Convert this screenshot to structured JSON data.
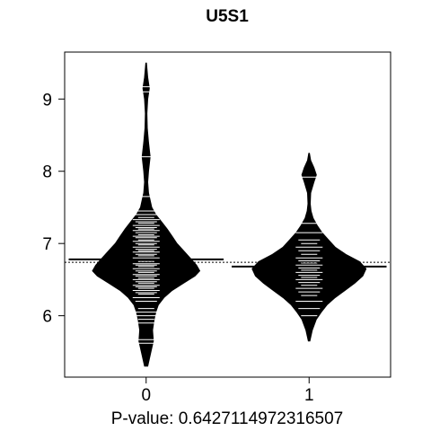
{
  "chart_data": {
    "type": "beanplot",
    "title": "U5S1",
    "xlabel": "P-value: 0.6427114972316507",
    "ylabel": "",
    "categories": [
      "0",
      "1"
    ],
    "yticks": [
      6,
      7,
      8,
      9
    ],
    "ylim": [
      5.15,
      9.65
    ],
    "xlim": [
      0.5,
      2.5
    ],
    "overall_mean": 6.74,
    "grid": false,
    "series": [
      {
        "category": "0",
        "mean": 6.78,
        "min": 5.3,
        "max": 9.5,
        "density": [
          [
            5.3,
            0.02
          ],
          [
            5.5,
            0.06
          ],
          [
            5.65,
            0.09
          ],
          [
            5.8,
            0.08
          ],
          [
            5.95,
            0.1
          ],
          [
            6.05,
            0.12
          ],
          [
            6.15,
            0.15
          ],
          [
            6.25,
            0.22
          ],
          [
            6.35,
            0.32
          ],
          [
            6.45,
            0.46
          ],
          [
            6.55,
            0.6
          ],
          [
            6.62,
            0.66
          ],
          [
            6.7,
            0.62
          ],
          [
            6.8,
            0.54
          ],
          [
            6.9,
            0.46
          ],
          [
            7.0,
            0.38
          ],
          [
            7.1,
            0.32
          ],
          [
            7.2,
            0.26
          ],
          [
            7.3,
            0.19
          ],
          [
            7.4,
            0.12
          ],
          [
            7.5,
            0.07
          ],
          [
            7.6,
            0.05
          ],
          [
            7.7,
            0.03
          ],
          [
            7.85,
            0.02
          ],
          [
            8.0,
            0.03
          ],
          [
            8.2,
            0.05
          ],
          [
            8.4,
            0.03
          ],
          [
            8.6,
            0.015
          ],
          [
            8.8,
            0.01
          ],
          [
            9.0,
            0.02
          ],
          [
            9.15,
            0.04
          ],
          [
            9.3,
            0.02
          ],
          [
            9.5,
            0.005
          ]
        ],
        "points": [
          5.62,
          5.67,
          5.9,
          5.95,
          6.0,
          6.05,
          6.1,
          6.2,
          6.25,
          6.3,
          6.32,
          6.35,
          6.38,
          6.4,
          6.42,
          6.45,
          6.47,
          6.5,
          6.52,
          6.55,
          6.57,
          6.6,
          6.62,
          6.65,
          6.68,
          6.7,
          6.72,
          6.75,
          6.78,
          6.8,
          6.83,
          6.85,
          6.88,
          6.9,
          6.92,
          6.95,
          6.98,
          7.0,
          7.03,
          7.05,
          7.08,
          7.1,
          7.12,
          7.15,
          7.18,
          7.2,
          7.22,
          7.25,
          7.28,
          7.3,
          7.33,
          7.36,
          7.4,
          7.45,
          7.65,
          8.2,
          9.1,
          9.17
        ]
      },
      {
        "category": "1",
        "mean": 6.68,
        "min": 5.65,
        "max": 8.25,
        "density": [
          [
            5.65,
            0.01
          ],
          [
            5.8,
            0.04
          ],
          [
            5.95,
            0.09
          ],
          [
            6.05,
            0.15
          ],
          [
            6.15,
            0.22
          ],
          [
            6.25,
            0.32
          ],
          [
            6.35,
            0.44
          ],
          [
            6.45,
            0.56
          ],
          [
            6.55,
            0.66
          ],
          [
            6.65,
            0.7
          ],
          [
            6.75,
            0.62
          ],
          [
            6.85,
            0.45
          ],
          [
            6.95,
            0.32
          ],
          [
            7.05,
            0.24
          ],
          [
            7.15,
            0.16
          ],
          [
            7.25,
            0.1
          ],
          [
            7.35,
            0.05
          ],
          [
            7.45,
            0.025
          ],
          [
            7.55,
            0.015
          ],
          [
            7.7,
            0.02
          ],
          [
            7.85,
            0.06
          ],
          [
            7.95,
            0.09
          ],
          [
            8.05,
            0.06
          ],
          [
            8.15,
            0.02
          ],
          [
            8.25,
            0.005
          ]
        ],
        "points": [
          6.0,
          6.1,
          6.2,
          6.28,
          6.33,
          6.38,
          6.42,
          6.46,
          6.5,
          6.53,
          6.56,
          6.6,
          6.63,
          6.66,
          6.7,
          6.73,
          6.76,
          6.8,
          6.85,
          6.9,
          6.95,
          7.0,
          7.05,
          7.15,
          7.28,
          7.92
        ]
      }
    ]
  }
}
